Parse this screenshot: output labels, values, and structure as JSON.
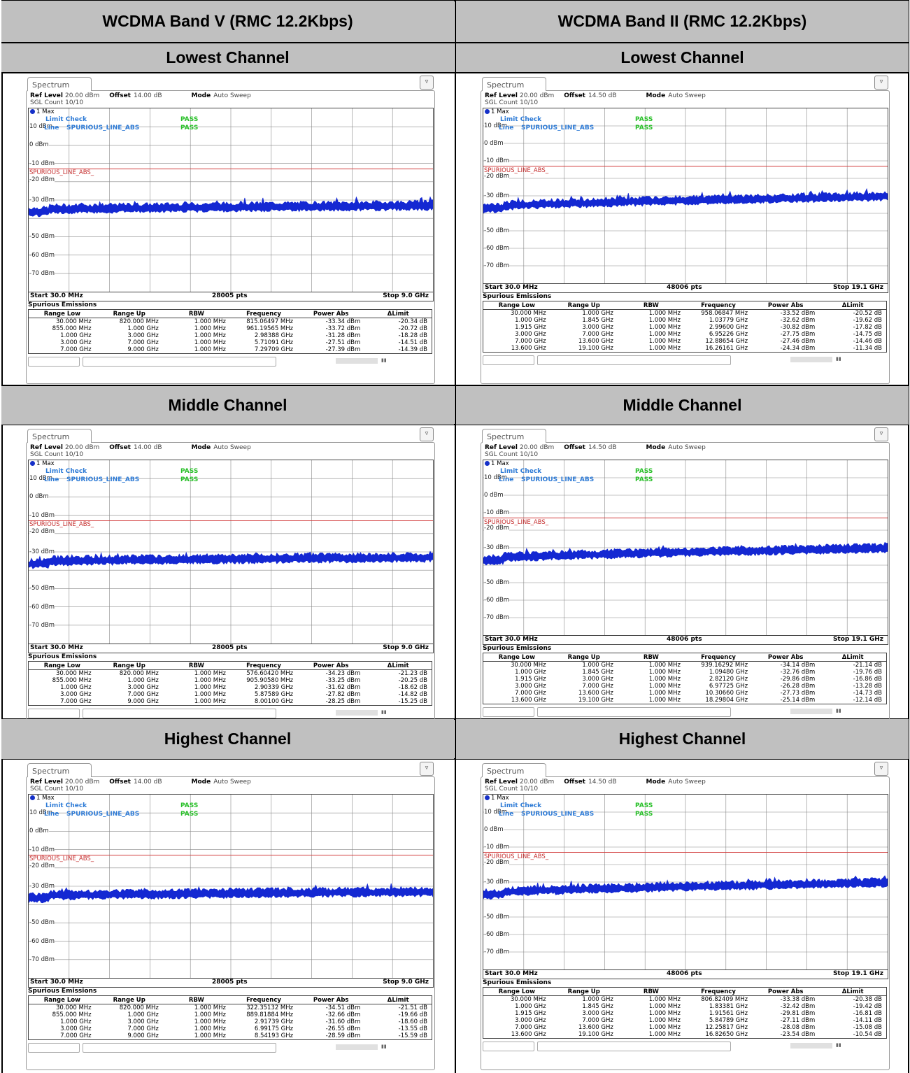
{
  "columns": [
    {
      "title": "WCDMA Band V (RMC 12.2Kbps)",
      "offset": "14.00 dB",
      "pts": "28005 pts",
      "start": "Start 30.0 MHz",
      "stop": "Stop 9.0 GHz",
      "ylabels": [
        "10 dBm",
        "0 dBm",
        "-10 dBm",
        "-20 dBm",
        "-30 dBm",
        "-50 dBm",
        "-60 dBm",
        "-70 dBm"
      ],
      "channels": [
        {
          "heading": "Lowest Channel",
          "rows": [
            [
              "30.000 MHz",
              "820.000 MHz",
              "1.000 MHz",
              "815.06497 MHz",
              "-33.34 dBm",
              "-20.34 dB"
            ],
            [
              "855.000 MHz",
              "1.000 GHz",
              "1.000 MHz",
              "961.19565 MHz",
              "-33.72 dBm",
              "-20.72 dB"
            ],
            [
              "1.000 GHz",
              "3.000 GHz",
              "1.000 MHz",
              "2.98388 GHz",
              "-31.28 dBm",
              "-18.28 dB"
            ],
            [
              "3.000 GHz",
              "7.000 GHz",
              "1.000 MHz",
              "5.71091 GHz",
              "-27.51 dBm",
              "-14.51 dB"
            ],
            [
              "7.000 GHz",
              "9.000 GHz",
              "1.000 MHz",
              "7.29709 GHz",
              "-27.39 dBm",
              "-14.39 dB"
            ]
          ]
        },
        {
          "heading": "Middle Channel",
          "rows": [
            [
              "30.000 MHz",
              "820.000 MHz",
              "1.000 MHz",
              "576.60420 MHz",
              "-34.23 dBm",
              "-21.23 dB"
            ],
            [
              "855.000 MHz",
              "1.000 GHz",
              "1.000 MHz",
              "905.90580 MHz",
              "-33.25 dBm",
              "-20.25 dB"
            ],
            [
              "1.000 GHz",
              "3.000 GHz",
              "1.000 MHz",
              "2.90339 GHz",
              "-31.62 dBm",
              "-18.62 dB"
            ],
            [
              "3.000 GHz",
              "7.000 GHz",
              "1.000 MHz",
              "5.87589 GHz",
              "-27.82 dBm",
              "-14.82 dB"
            ],
            [
              "7.000 GHz",
              "9.000 GHz",
              "1.000 MHz",
              "8.00100 GHz",
              "-28.25 dBm",
              "-15.25 dB"
            ]
          ]
        },
        {
          "heading": "Highest Channel",
          "rows": [
            [
              "30.000 MHz",
              "820.000 MHz",
              "1.000 MHz",
              "322.35132 MHz",
              "-34.51 dBm",
              "-21.51 dB"
            ],
            [
              "855.000 MHz",
              "1.000 GHz",
              "1.000 MHz",
              "889.81884 MHz",
              "-32.66 dBm",
              "-19.66 dB"
            ],
            [
              "1.000 GHz",
              "3.000 GHz",
              "1.000 MHz",
              "2.91739 GHz",
              "-31.60 dBm",
              "-18.60 dB"
            ],
            [
              "3.000 GHz",
              "7.000 GHz",
              "1.000 MHz",
              "6.99175 GHz",
              "-26.55 dBm",
              "-13.55 dB"
            ],
            [
              "7.000 GHz",
              "9.000 GHz",
              "1.000 MHz",
              "8.54193 GHz",
              "-28.59 dBm",
              "-15.59 dB"
            ]
          ]
        }
      ]
    },
    {
      "title": "WCDMA Band II (RMC 12.2Kbps)",
      "offset": "14.50 dB",
      "pts": "48006 pts",
      "start": "Start 30.0 MHz",
      "stop": "Stop 19.1 GHz",
      "ylabels": [
        "10 dBm",
        "0 dBm",
        "-10 dBm",
        "-20 dBm",
        "-30 dBm",
        "-50 dBm",
        "-60 dBm",
        "-70 dBm"
      ],
      "channels": [
        {
          "heading": "Lowest Channel",
          "rows": [
            [
              "30.000 MHz",
              "1.000 GHz",
              "1.000 MHz",
              "958.06847 MHz",
              "-33.52 dBm",
              "-20.52 dB"
            ],
            [
              "1.000 GHz",
              "1.845 GHz",
              "1.000 MHz",
              "1.03779 GHz",
              "-32.62 dBm",
              "-19.62 dB"
            ],
            [
              "1.915 GHz",
              "3.000 GHz",
              "1.000 MHz",
              "2.99600 GHz",
              "-30.82 dBm",
              "-17.82 dB"
            ],
            [
              "3.000 GHz",
              "7.000 GHz",
              "1.000 MHz",
              "6.95226 GHz",
              "-27.75 dBm",
              "-14.75 dB"
            ],
            [
              "7.000 GHz",
              "13.600 GHz",
              "1.000 MHz",
              "12.88654 GHz",
              "-27.46 dBm",
              "-14.46 dB"
            ],
            [
              "13.600 GHz",
              "19.100 GHz",
              "1.000 MHz",
              "16.26161 GHz",
              "-24.34 dBm",
              "-11.34 dB"
            ]
          ]
        },
        {
          "heading": "Middle Channel",
          "rows": [
            [
              "30.000 MHz",
              "1.000 GHz",
              "1.000 MHz",
              "939.16292 MHz",
              "-34.14 dBm",
              "-21.14 dB"
            ],
            [
              "1.000 GHz",
              "1.845 GHz",
              "1.000 MHz",
              "1.09480 GHz",
              "-32.76 dBm",
              "-19.76 dB"
            ],
            [
              "1.915 GHz",
              "3.000 GHz",
              "1.000 MHz",
              "2.82120 GHz",
              "-29.86 dBm",
              "-16.86 dB"
            ],
            [
              "3.000 GHz",
              "7.000 GHz",
              "1.000 MHz",
              "6.97725 GHz",
              "-26.28 dBm",
              "-13.28 dB"
            ],
            [
              "7.000 GHz",
              "13.600 GHz",
              "1.000 MHz",
              "10.30660 GHz",
              "-27.73 dBm",
              "-14.73 dB"
            ],
            [
              "13.600 GHz",
              "19.100 GHz",
              "1.000 MHz",
              "18.29804 GHz",
              "-25.14 dBm",
              "-12.14 dB"
            ]
          ]
        },
        {
          "heading": "Highest Channel",
          "rows": [
            [
              "30.000 MHz",
              "1.000 GHz",
              "1.000 MHz",
              "806.82409 MHz",
              "-33.38 dBm",
              "-20.38 dB"
            ],
            [
              "1.000 GHz",
              "1.845 GHz",
              "1.000 MHz",
              "1.83381 GHz",
              "-32.42 dBm",
              "-19.42 dB"
            ],
            [
              "1.915 GHz",
              "3.000 GHz",
              "1.000 MHz",
              "1.91561 GHz",
              "-29.81 dBm",
              "-16.81 dB"
            ],
            [
              "3.000 GHz",
              "7.000 GHz",
              "1.000 MHz",
              "5.84789 GHz",
              "-27.11 dBm",
              "-14.11 dB"
            ],
            [
              "7.000 GHz",
              "13.600 GHz",
              "1.000 MHz",
              "12.25817 GHz",
              "-28.08 dBm",
              "-15.08 dB"
            ],
            [
              "13.600 GHz",
              "19.100 GHz",
              "1.000 MHz",
              "16.82650 GHz",
              "-23.54 dBm",
              "-10.54 dB"
            ]
          ]
        }
      ]
    }
  ],
  "common": {
    "tab": "Spectrum",
    "ref_label": "Ref Level",
    "ref_value": "20.00 dBm",
    "offset_label": "Offset",
    "mode_label": "Mode",
    "mode_value": "Auto Sweep",
    "sgl": "SGL Count 10/10",
    "trace": "1 Max",
    "limit_check": "Limit Check",
    "line": "Line",
    "line_name": "SPURIOUS_LINE_ABS",
    "pass": "PASS",
    "limit_line_label": "SPURIOUS_LINE_ABS_",
    "table_title": "Spurious Emissions",
    "headers": [
      "Range Low",
      "Range Up",
      "RBW",
      "Frequency",
      "Power Abs",
      "ΔLimit"
    ]
  },
  "colors": {
    "trace": "#1428d2",
    "limit": "#d23c3c",
    "header_bg": "#c0c0c0",
    "limit_check": "#2e7bd6",
    "pass": "#29c029"
  }
}
